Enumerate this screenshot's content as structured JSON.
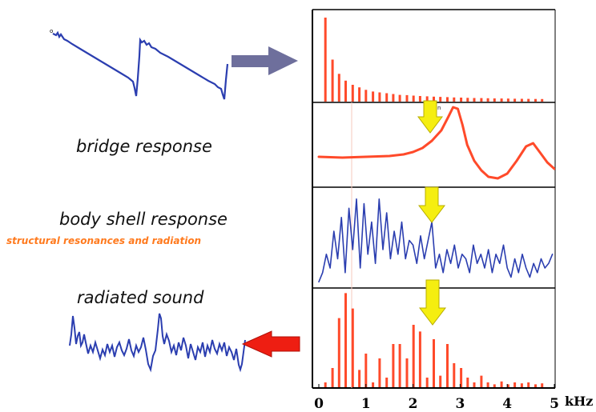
{
  "labels": {
    "bridge": "bridge response",
    "body": "body shell response",
    "structural": "structural resonances and radiation",
    "radiated": "radiated sound"
  },
  "axis": {
    "ticks": [
      "0",
      "1",
      "2",
      "3",
      "4",
      "5"
    ],
    "unit": "kHz",
    "range_khz": [
      0,
      5
    ]
  },
  "markers": {
    "sawtooth_start": "o",
    "panel_corner": "n"
  },
  "colors": {
    "wave": "#2b3eb0",
    "spectrum": "#ff4a2a",
    "arrow_grey": "#6e6f9c",
    "arrow_yellow": "#f5ee10",
    "arrow_red": "#ee1e12",
    "subtitle": "#ff7a1e"
  },
  "chart_data": [
    {
      "type": "bar",
      "panel": "input-spectrum",
      "x_khz": [
        0.14,
        0.29,
        0.43,
        0.57,
        0.72,
        0.86,
        1.0,
        1.15,
        1.29,
        1.44,
        1.58,
        1.72,
        1.87,
        2.01,
        2.15,
        2.3,
        2.44,
        2.58,
        2.73,
        2.87,
        3.02,
        3.16,
        3.3,
        3.45,
        3.59,
        3.73,
        3.88,
        4.02,
        4.16,
        4.31,
        4.45,
        4.6,
        4.74
      ],
      "values": [
        1.0,
        0.5,
        0.33,
        0.25,
        0.2,
        0.17,
        0.14,
        0.12,
        0.11,
        0.1,
        0.09,
        0.08,
        0.077,
        0.071,
        0.067,
        0.063,
        0.059,
        0.056,
        0.053,
        0.05,
        0.048,
        0.045,
        0.043,
        0.042,
        0.04,
        0.038,
        0.037,
        0.036,
        0.034,
        0.033,
        0.032,
        0.031,
        0.03
      ],
      "xlim": [
        0,
        5
      ],
      "ylim": [
        0,
        1
      ]
    },
    {
      "type": "line",
      "panel": "bridge-response",
      "x_khz": [
        0.0,
        0.5,
        1.0,
        1.5,
        1.8,
        2.0,
        2.2,
        2.4,
        2.6,
        2.75,
        2.85,
        2.95,
        3.05,
        3.15,
        3.3,
        3.45,
        3.6,
        3.8,
        4.0,
        4.2,
        4.4,
        4.55,
        4.7,
        4.85,
        5.0
      ],
      "values": [
        0.35,
        0.34,
        0.35,
        0.36,
        0.38,
        0.41,
        0.46,
        0.55,
        0.68,
        0.85,
        0.97,
        0.95,
        0.75,
        0.5,
        0.3,
        0.18,
        0.1,
        0.08,
        0.14,
        0.3,
        0.48,
        0.52,
        0.4,
        0.28,
        0.2
      ],
      "xlim": [
        0,
        5
      ],
      "ylim": [
        0,
        1
      ]
    },
    {
      "type": "line",
      "panel": "body-shell-response",
      "x_khz": [
        0.0,
        0.08,
        0.16,
        0.24,
        0.32,
        0.4,
        0.48,
        0.56,
        0.64,
        0.72,
        0.8,
        0.88,
        0.96,
        1.04,
        1.12,
        1.2,
        1.28,
        1.36,
        1.44,
        1.52,
        1.6,
        1.68,
        1.76,
        1.84,
        1.92,
        2.0,
        2.08,
        2.16,
        2.24,
        2.32,
        2.4,
        2.48,
        2.56,
        2.64,
        2.72,
        2.8,
        2.88,
        2.96,
        3.04,
        3.12,
        3.2,
        3.28,
        3.36,
        3.44,
        3.52,
        3.6,
        3.68,
        3.76,
        3.84,
        3.92,
        4.0,
        4.08,
        4.16,
        4.24,
        4.32,
        4.4,
        4.48,
        4.56,
        4.64,
        4.72,
        4.8,
        4.88,
        4.96
      ],
      "values": [
        0.05,
        0.15,
        0.35,
        0.2,
        0.6,
        0.3,
        0.75,
        0.15,
        0.85,
        0.4,
        0.95,
        0.2,
        0.9,
        0.35,
        0.7,
        0.25,
        0.95,
        0.4,
        0.8,
        0.3,
        0.6,
        0.35,
        0.7,
        0.3,
        0.5,
        0.45,
        0.25,
        0.55,
        0.3,
        0.5,
        0.7,
        0.2,
        0.35,
        0.15,
        0.4,
        0.25,
        0.45,
        0.2,
        0.35,
        0.3,
        0.15,
        0.45,
        0.25,
        0.35,
        0.2,
        0.4,
        0.15,
        0.35,
        0.25,
        0.45,
        0.2,
        0.1,
        0.3,
        0.15,
        0.35,
        0.2,
        0.1,
        0.25,
        0.15,
        0.3,
        0.2,
        0.25,
        0.35
      ],
      "xlim": [
        0,
        5
      ],
      "ylim": [
        0,
        1
      ]
    },
    {
      "type": "bar",
      "panel": "radiated-spectrum",
      "x_khz": [
        0.14,
        0.29,
        0.43,
        0.57,
        0.72,
        0.86,
        1.0,
        1.15,
        1.29,
        1.44,
        1.58,
        1.72,
        1.87,
        2.01,
        2.15,
        2.3,
        2.44,
        2.58,
        2.73,
        2.87,
        3.02,
        3.16,
        3.3,
        3.45,
        3.59,
        3.73,
        3.88,
        4.02,
        4.16,
        4.31,
        4.45,
        4.6,
        4.74
      ],
      "values": [
        0.05,
        0.2,
        0.72,
        0.98,
        0.82,
        0.18,
        0.35,
        0.05,
        0.3,
        0.1,
        0.45,
        0.45,
        0.3,
        0.65,
        0.58,
        0.1,
        0.5,
        0.12,
        0.45,
        0.25,
        0.2,
        0.1,
        0.05,
        0.12,
        0.05,
        0.03,
        0.06,
        0.03,
        0.05,
        0.04,
        0.05,
        0.03,
        0.04
      ],
      "xlim": [
        0,
        5
      ],
      "ylim": [
        0,
        1
      ]
    }
  ]
}
